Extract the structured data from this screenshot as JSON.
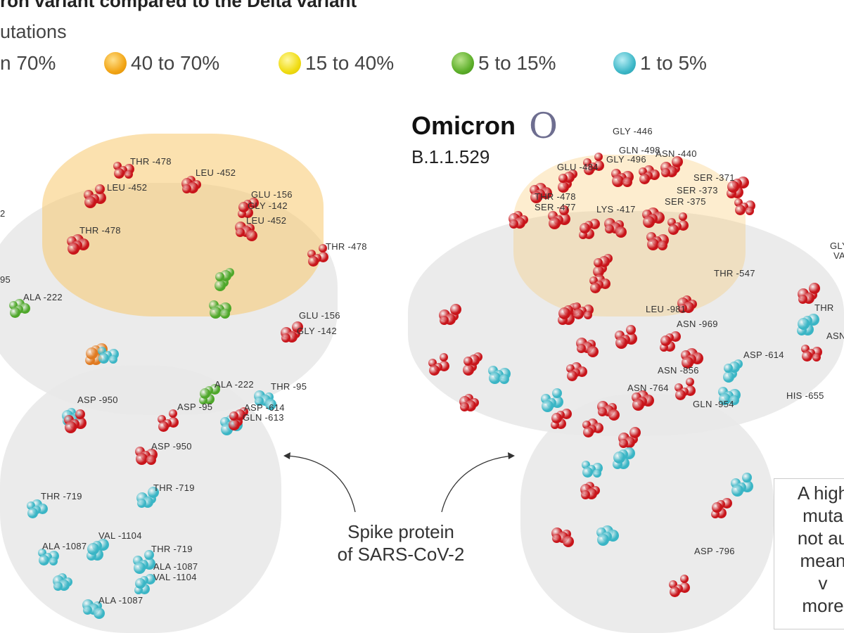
{
  "title": "ron variant compared to the Delta variant",
  "subtitle": "utations",
  "legend": [
    {
      "label": "n 70%",
      "color": "#cc1111"
    },
    {
      "label": "40 to 70%",
      "color": "#f2a516"
    },
    {
      "label": "15 to 40%",
      "color": "#f0dc12"
    },
    {
      "label": "5 to 15%",
      "color": "#5daf2a"
    },
    {
      "label": "1 to 5%",
      "color": "#3fb8c8"
    }
  ],
  "omicron": {
    "name": "Omicron",
    "symbol": "O",
    "lineage": "B.1.1.529"
  },
  "caption": {
    "line1": "Spike protein",
    "line2": "of SARS-CoV-2"
  },
  "note": [
    "A high",
    "muta",
    "not au",
    "mean",
    "v",
    "more"
  ],
  "left_labels": [
    "THR -478",
    "LEU -452",
    "LEU -452",
    "GLU -156",
    "GLY -142",
    "LEU -452",
    "THR -478",
    "THR -478",
    "ALA -222",
    "GLU -156",
    "GLY -142",
    "ASP -950",
    "ALA -222",
    "THR -95",
    "ASP -95",
    "ASP -614",
    "GLN -613",
    "ASP -950",
    "THR -719",
    "THR -719",
    "VAL -1104",
    "ALA -1087",
    "THR -719",
    "ALA -1087",
    "VAL -1104",
    "ALA -1087",
    "95",
    "2"
  ],
  "right_labels": [
    "GLY -446",
    "GLN -498",
    "ASN -440",
    "GLY -496",
    "GLU -484",
    "THR -478",
    "SER -477",
    "LYS -417",
    "SER -371",
    "SER -373",
    "SER -375",
    "THR -547",
    "LEU -981",
    "ASN -969",
    "ASP -614",
    "ASN -856",
    "ASN -764",
    "GLN -954",
    "HIS -655",
    "ASP -796",
    "GLY",
    "VA",
    "THR",
    "ASN"
  ]
}
